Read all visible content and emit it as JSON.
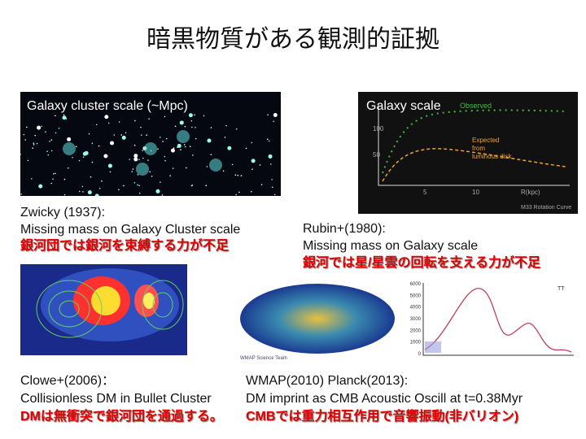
{
  "title": "暗黒物質がある観測的証拠",
  "panels": [
    {
      "image_label": "Galaxy cluster scale (~Mpc)",
      "citation": "Zwicky (1937):",
      "description": "Missing mass on Galaxy Cluster scale",
      "japanese": "銀河団では銀河を束縛する力が不足"
    },
    {
      "image_label": "Galaxy scale",
      "citation": "Rubin+(1980):",
      "description": "Missing mass on Galaxy scale",
      "japanese": "銀河では星/星雲の回転を支える力が不足"
    },
    {
      "citation": "Clowe+(2006)：",
      "description": "Collisionless DM in Bullet Cluster",
      "japanese": "DMは無衝突で銀河団を通過する。"
    },
    {
      "citation": "WMAP(2010) Planck(2013):",
      "description": "DM imprint as CMB Acoustic Oscill at t=0.38Myr",
      "japanese": "CMBでは重力相互作用で音響振動(非バリオン)"
    }
  ],
  "rotation_curve": {
    "legend_observed": "Observed",
    "legend_expected": [
      "Expected",
      "from",
      "luminous disk"
    ],
    "yticks": [
      "100",
      "50"
    ],
    "xticks": [
      "5",
      "10"
    ],
    "x_label": "R(kpc)",
    "caption": "M33 Rotation Curve"
  },
  "cmb": {
    "credit": "WMAP Science Team",
    "spectrum_label": "TT",
    "yticks": [
      "6000",
      "5000",
      "4000",
      "3000",
      "2000",
      "1000",
      "0"
    ]
  }
}
